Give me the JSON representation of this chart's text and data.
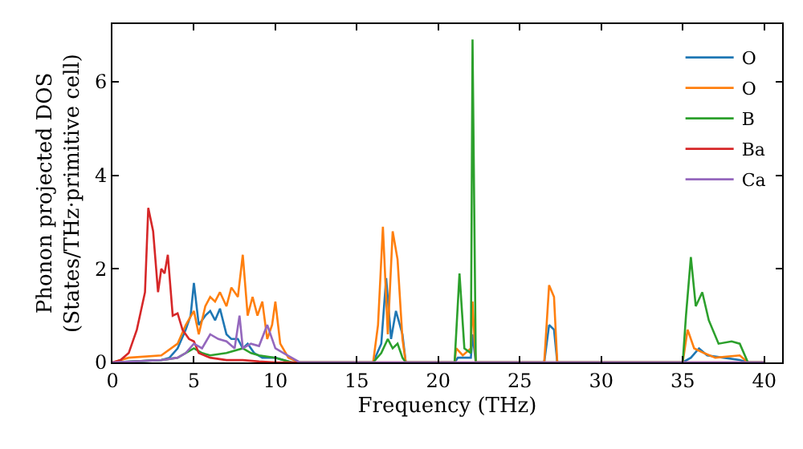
{
  "chart_data": {
    "type": "line",
    "xlabel": "Frequency (THz)",
    "ylabel": "Phonon projected DOS\n(States/THz·primitive cell)",
    "xlim": [
      0,
      41.1
    ],
    "ylim": [
      0,
      7.23
    ],
    "xticks": [
      0,
      5,
      10,
      15,
      20,
      25,
      30,
      35,
      40
    ],
    "yticks": [
      0,
      2,
      4,
      6
    ],
    "legend": "top right",
    "series": [
      {
        "name": "O",
        "color": "#1f77b4",
        "x": [
          0,
          3,
          3.5,
          4,
          4.5,
          4.8,
          5.0,
          5.3,
          5.7,
          6,
          6.3,
          6.6,
          7,
          7.3,
          7.7,
          8,
          8.3,
          8.7,
          9.2,
          10,
          11,
          16,
          16.5,
          16.8,
          17.1,
          17.4,
          17.8,
          18,
          21,
          21.2,
          21.6,
          22,
          22.1,
          22.3,
          26.5,
          26.8,
          27.1,
          27.3,
          35,
          35.5,
          36,
          36.5,
          37.5,
          38.5,
          39,
          40
        ],
        "values": [
          0,
          0.05,
          0.1,
          0.3,
          0.7,
          1.0,
          1.7,
          0.8,
          1.0,
          1.1,
          0.9,
          1.15,
          0.6,
          0.5,
          0.5,
          0.3,
          0.4,
          0.2,
          0.1,
          0.1,
          0,
          0,
          0.4,
          1.8,
          0.5,
          1.1,
          0.6,
          0,
          0,
          0.1,
          0.1,
          0.1,
          0.6,
          0,
          0,
          0.8,
          0.7,
          0,
          0,
          0.1,
          0.3,
          0.15,
          0.1,
          0.05,
          0,
          0
        ]
      },
      {
        "name": "O",
        "color": "#ff7f0e",
        "x": [
          0,
          1,
          3,
          4,
          4.5,
          5,
          5.3,
          5.7,
          6,
          6.3,
          6.6,
          7,
          7.3,
          7.7,
          8,
          8.3,
          8.6,
          8.9,
          9.2,
          9.5,
          9.8,
          10,
          10.3,
          10.8,
          11.5,
          16,
          16.3,
          16.6,
          16.9,
          17.2,
          17.5,
          17.8,
          18,
          21,
          21.1,
          21.5,
          22,
          22.1,
          22.3,
          26.5,
          26.8,
          27.1,
          27.3,
          35,
          35.3,
          35.7,
          36.3,
          37,
          38.5,
          39,
          40
        ],
        "values": [
          0,
          0.1,
          0.15,
          0.4,
          0.8,
          1.1,
          0.6,
          1.2,
          1.4,
          1.3,
          1.5,
          1.2,
          1.6,
          1.4,
          2.3,
          1.0,
          1.4,
          1.0,
          1.3,
          0.5,
          0.8,
          1.3,
          0.4,
          0.1,
          0,
          0,
          0.8,
          2.9,
          0.6,
          2.8,
          2.2,
          0.5,
          0,
          0,
          0.3,
          0.15,
          0.3,
          1.3,
          0,
          0,
          1.65,
          1.4,
          0,
          0,
          0.7,
          0.3,
          0.2,
          0.1,
          0.15,
          0,
          0
        ]
      },
      {
        "name": "B",
        "color": "#2ca02c",
        "x": [
          0,
          3,
          4,
          5,
          5.5,
          6,
          7,
          8,
          8.5,
          9,
          10,
          11,
          16,
          16.5,
          16.9,
          17.2,
          17.5,
          17.8,
          18,
          21,
          21.3,
          21.6,
          22,
          22.1,
          22.3,
          35,
          35.2,
          35.5,
          35.8,
          36.2,
          36.6,
          37.2,
          38,
          38.5,
          39,
          40
        ],
        "values": [
          0,
          0.05,
          0.1,
          0.3,
          0.2,
          0.15,
          0.2,
          0.3,
          0.2,
          0.15,
          0.1,
          0,
          0,
          0.2,
          0.5,
          0.3,
          0.4,
          0.1,
          0,
          0,
          1.9,
          0.3,
          0.2,
          6.9,
          0,
          0,
          1.0,
          2.25,
          1.2,
          1.5,
          0.9,
          0.4,
          0.45,
          0.4,
          0,
          0
        ]
      },
      {
        "name": "Ba",
        "color": "#d62728",
        "x": [
          0,
          0.5,
          1,
          1.5,
          2,
          2.2,
          2.5,
          2.8,
          3.0,
          3.2,
          3.4,
          3.7,
          4,
          4.3,
          4.7,
          5,
          5.3,
          6,
          7,
          8,
          9,
          10,
          40
        ],
        "values": [
          0,
          0.05,
          0.2,
          0.7,
          1.5,
          3.3,
          2.8,
          1.5,
          2.0,
          1.9,
          2.3,
          1.0,
          1.05,
          0.7,
          0.5,
          0.45,
          0.2,
          0.1,
          0.05,
          0.05,
          0.02,
          0,
          0
        ]
      },
      {
        "name": "Ca",
        "color": "#9467bd",
        "x": [
          0,
          3,
          4,
          4.5,
          5,
          5.5,
          6,
          6.5,
          7,
          7.5,
          7.8,
          8,
          8.5,
          9,
          9.5,
          10,
          10.5,
          11,
          11.5,
          40
        ],
        "values": [
          0,
          0.05,
          0.1,
          0.2,
          0.4,
          0.3,
          0.6,
          0.5,
          0.45,
          0.3,
          1.0,
          0.3,
          0.4,
          0.35,
          0.8,
          0.3,
          0.2,
          0.1,
          0,
          0
        ]
      }
    ]
  }
}
